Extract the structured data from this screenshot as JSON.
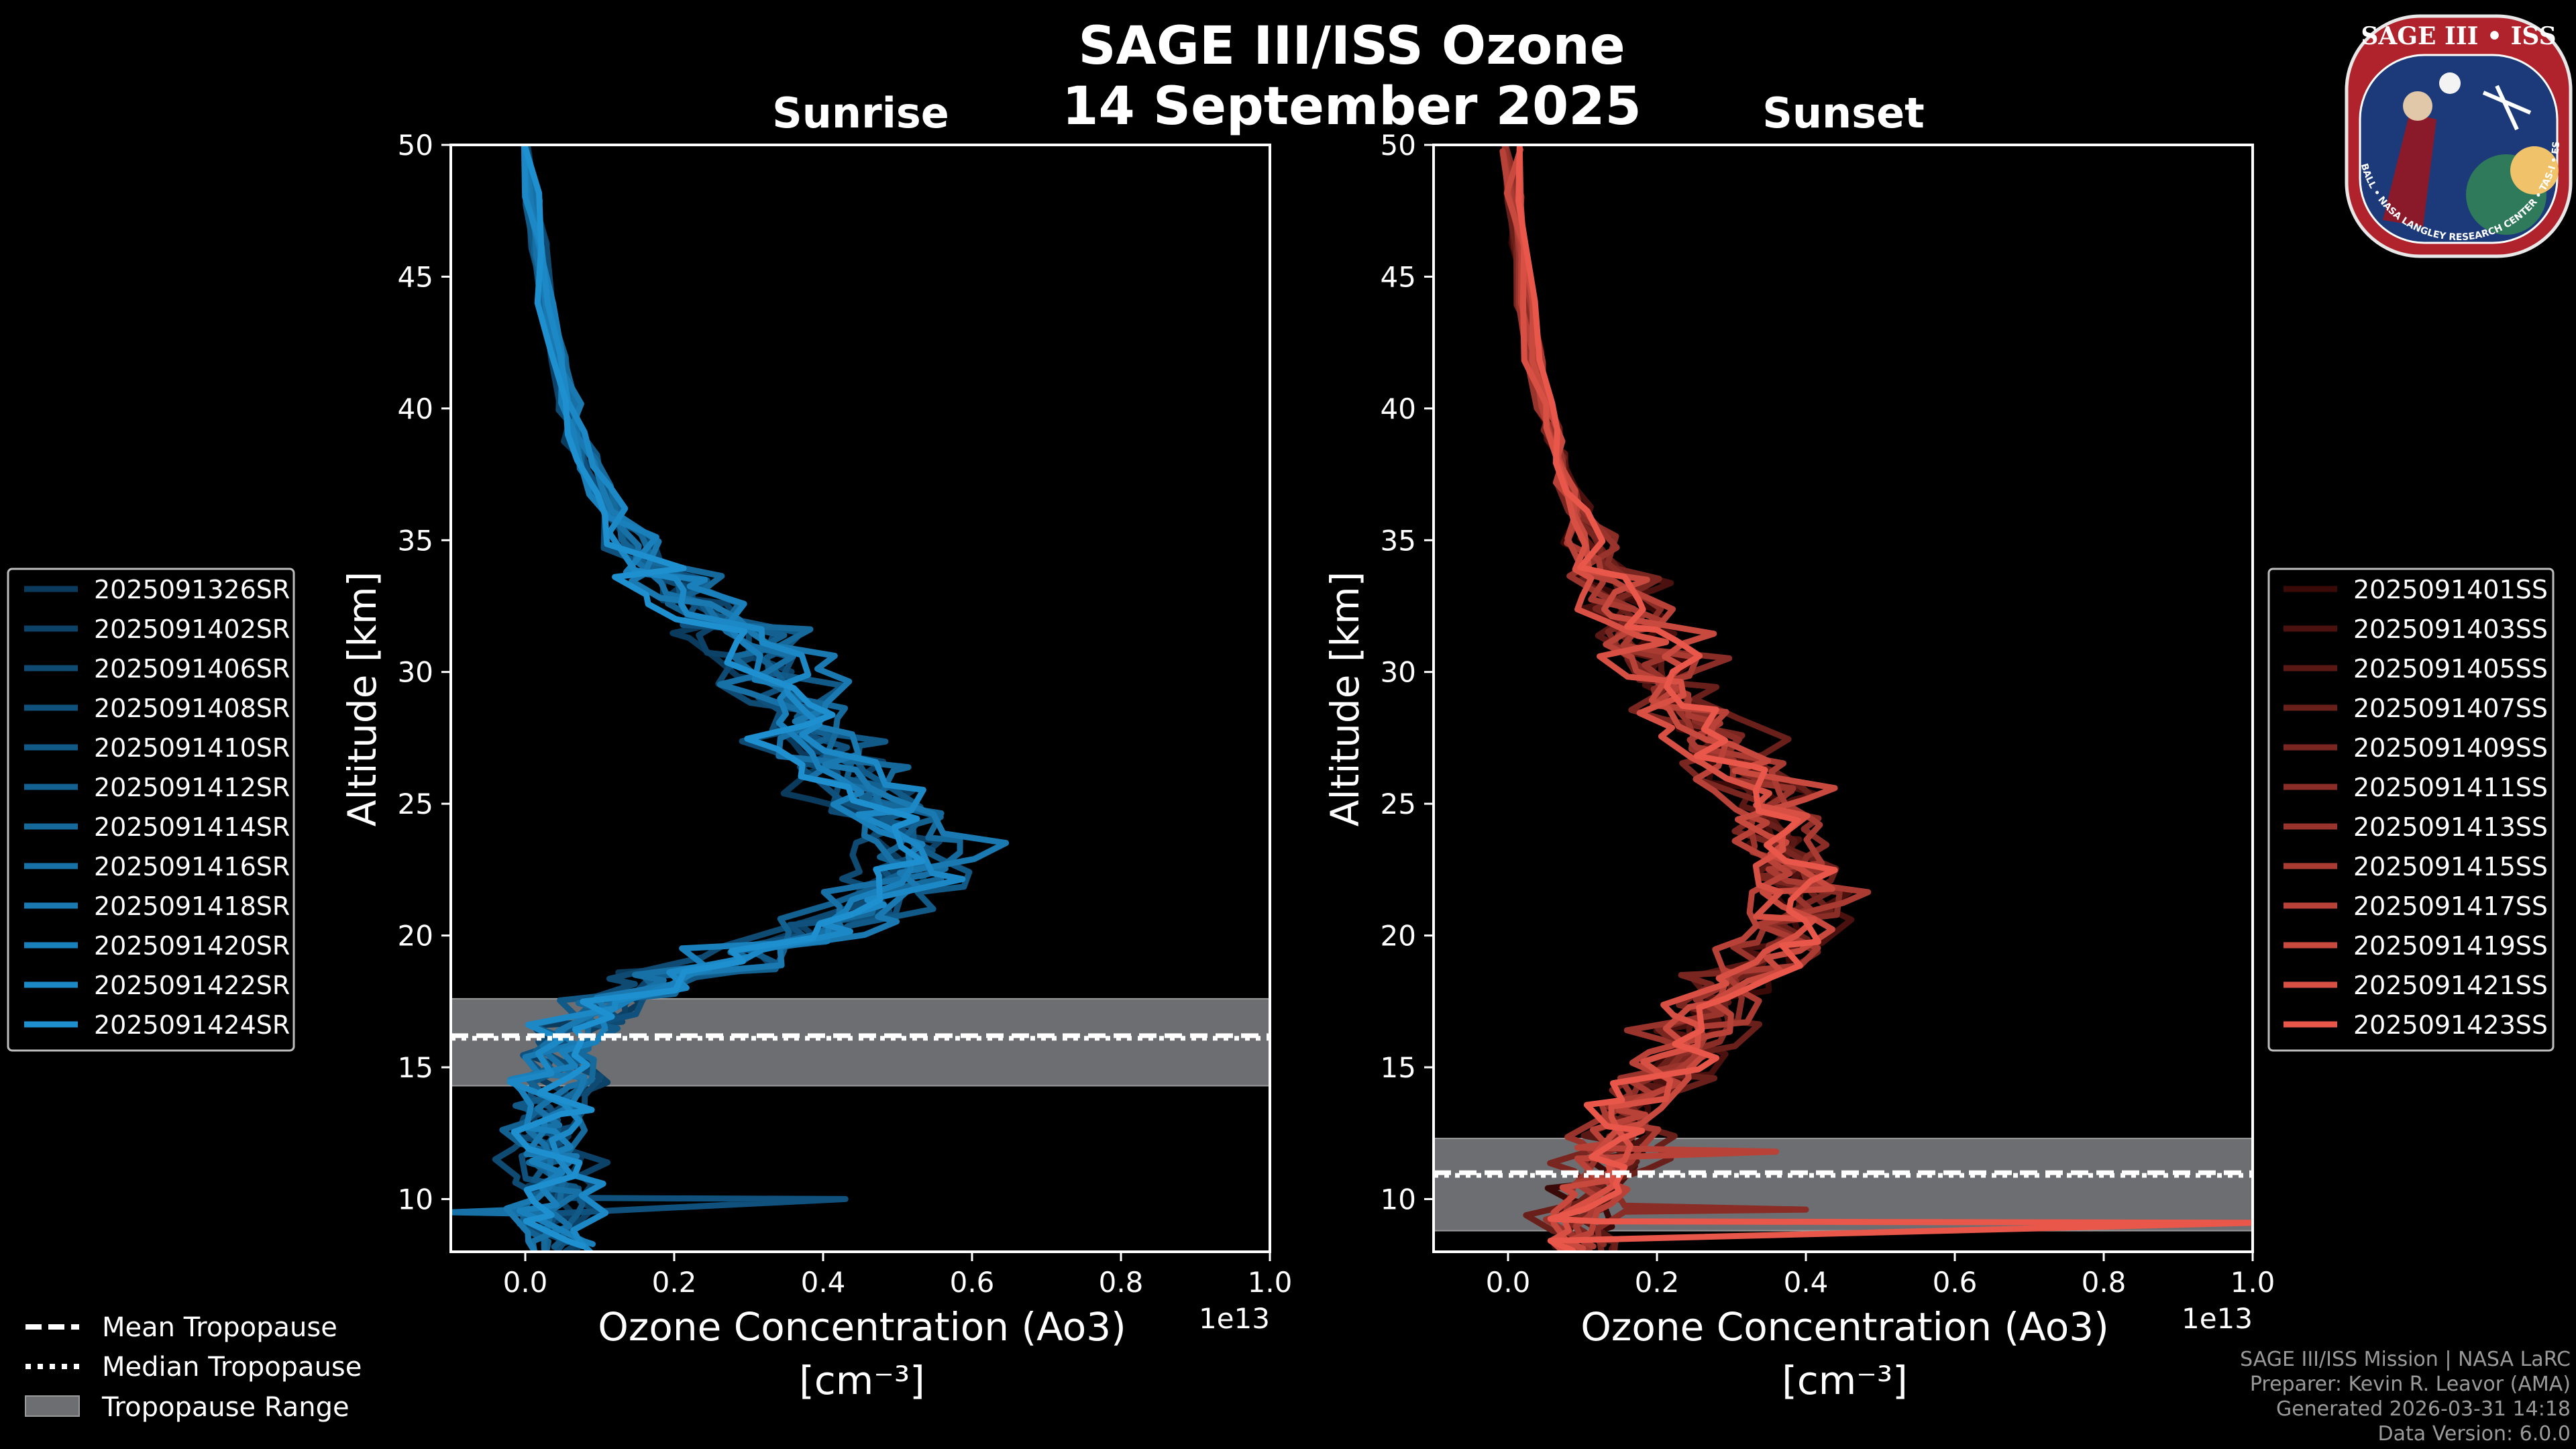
{
  "title_line1": "SAGE III/ISS Ozone",
  "title_line2": "14 September 2025",
  "panels": [
    {
      "id": "sunrise",
      "title": "Sunrise",
      "ylabel": "Altitude [km]",
      "xlabel_line1": "Ozone Concentration (Ao3)",
      "xlabel_line2": "[cm⁻³]",
      "offset_text": "1e13"
    },
    {
      "id": "sunset",
      "title": "Sunset",
      "ylabel": "Altitude [km]",
      "xlabel_line1": "Ozone Concentration (Ao3)",
      "xlabel_line2": "[cm⁻³]",
      "offset_text": "1e13"
    }
  ],
  "legend_sunrise": [
    "2025091326SR",
    "2025091402SR",
    "2025091406SR",
    "2025091408SR",
    "2025091410SR",
    "2025091412SR",
    "2025091414SR",
    "2025091416SR",
    "2025091418SR",
    "2025091420SR",
    "2025091422SR",
    "2025091424SR"
  ],
  "legend_sunset": [
    "2025091401SS",
    "2025091403SS",
    "2025091405SS",
    "2025091407SS",
    "2025091409SS",
    "2025091411SS",
    "2025091413SS",
    "2025091415SS",
    "2025091417SS",
    "2025091419SS",
    "2025091421SS",
    "2025091423SS"
  ],
  "tropo_legend": {
    "mean": "Mean Tropopause",
    "median": "Median Tropopause",
    "range": "Tropopause Range"
  },
  "credits": {
    "line1": "SAGE III/ISS Mission | NASA LaRC",
    "line2": "Preparer: Kevin R. Leavor (AMA)",
    "line3": "Generated 2026-03-31 14:18",
    "line4": "Data Version: 6.0.0"
  },
  "badge": {
    "top": "SAGE III • ISS",
    "ring": "BALL • NASA LANGLEY RESEARCH CENTER • TAS-I • ESA"
  },
  "colors": {
    "sunrise_dark": "#0a3a5c",
    "sunrise_light": "#1e90d0",
    "sunset_dark": "#3a0a08",
    "sunset_light": "#e8574a",
    "tropo_band": "#6d6e72"
  },
  "chart_data": [
    {
      "type": "line",
      "title": "Sunrise",
      "xlabel": "Ozone Concentration (Ao3) [cm⁻³]",
      "ylabel": "Altitude [km]",
      "x_scale": "1e13",
      "xlim": [
        -0.1,
        1.0
      ],
      "ylim": [
        8,
        50
      ],
      "xticks": [
        0.0,
        0.2,
        0.4,
        0.6,
        0.8,
        1.0
      ],
      "yticks": [
        10,
        15,
        20,
        25,
        30,
        35,
        40,
        45,
        50
      ],
      "tropopause": {
        "mean_km": 16.2,
        "median_km": 16.1,
        "range_km": [
          14.3,
          17.6
        ]
      },
      "base_profile": {
        "altitude": [
          8,
          9,
          10,
          11,
          12,
          13,
          14,
          15,
          16,
          17,
          18,
          19,
          20,
          21,
          22,
          23,
          24,
          25,
          26,
          27,
          28,
          29,
          30,
          31,
          32,
          33,
          34,
          35,
          36,
          37,
          38,
          39,
          40,
          42,
          44,
          46,
          48,
          50
        ],
        "ozone": [
          0.05,
          0.04,
          0.04,
          0.03,
          0.03,
          0.03,
          0.04,
          0.05,
          0.07,
          0.11,
          0.19,
          0.3,
          0.4,
          0.47,
          0.52,
          0.53,
          0.51,
          0.47,
          0.43,
          0.4,
          0.38,
          0.36,
          0.33,
          0.29,
          0.25,
          0.21,
          0.18,
          0.15,
          0.12,
          0.1,
          0.085,
          0.07,
          0.06,
          0.045,
          0.03,
          0.02,
          0.01,
          0.005
        ]
      },
      "series_names": [
        "2025091326SR",
        "2025091402SR",
        "2025091406SR",
        "2025091408SR",
        "2025091410SR",
        "2025091412SR",
        "2025091414SR",
        "2025091416SR",
        "2025091418SR",
        "2025091420SR",
        "2025091422SR",
        "2025091424SR"
      ],
      "spikes": [
        {
          "series": 3,
          "altitude": 10.0,
          "ozone": 0.43
        },
        {
          "series": 7,
          "altitude": 9.5,
          "ozone": -0.1
        }
      ]
    },
    {
      "type": "line",
      "title": "Sunset",
      "xlabel": "Ozone Concentration (Ao3) [cm⁻³]",
      "ylabel": "Altitude [km]",
      "x_scale": "1e13",
      "xlim": [
        -0.1,
        1.0
      ],
      "ylim": [
        8,
        50
      ],
      "xticks": [
        0.0,
        0.2,
        0.4,
        0.6,
        0.8,
        1.0
      ],
      "yticks": [
        10,
        15,
        20,
        25,
        30,
        35,
        40,
        45,
        50
      ],
      "tropopause": {
        "mean_km": 11.0,
        "median_km": 10.9,
        "range_km": [
          8.8,
          12.3
        ]
      },
      "base_profile": {
        "altitude": [
          8,
          9,
          10,
          11,
          12,
          13,
          14,
          15,
          16,
          17,
          18,
          19,
          20,
          21,
          22,
          23,
          24,
          25,
          26,
          27,
          28,
          29,
          30,
          31,
          32,
          33,
          34,
          35,
          36,
          37,
          38,
          39,
          40,
          42,
          44,
          46,
          48,
          50
        ],
        "ozone": [
          0.1,
          0.1,
          0.12,
          0.14,
          0.15,
          0.17,
          0.19,
          0.22,
          0.25,
          0.28,
          0.32,
          0.36,
          0.39,
          0.4,
          0.39,
          0.38,
          0.37,
          0.35,
          0.32,
          0.29,
          0.26,
          0.23,
          0.21,
          0.19,
          0.17,
          0.15,
          0.13,
          0.11,
          0.095,
          0.08,
          0.07,
          0.06,
          0.05,
          0.035,
          0.025,
          0.015,
          0.01,
          0.005
        ]
      },
      "series_names": [
        "2025091401SS",
        "2025091403SS",
        "2025091405SS",
        "2025091407SS",
        "2025091409SS",
        "2025091411SS",
        "2025091413SS",
        "2025091415SS",
        "2025091417SS",
        "2025091419SS",
        "2025091421SS",
        "2025091423SS"
      ],
      "spikes": [
        {
          "series": 11,
          "altitude": 9.1,
          "ozone": 1.0
        },
        {
          "series": 5,
          "altitude": 9.6,
          "ozone": 0.4
        },
        {
          "series": 8,
          "altitude": 11.8,
          "ozone": 0.36
        }
      ]
    }
  ]
}
